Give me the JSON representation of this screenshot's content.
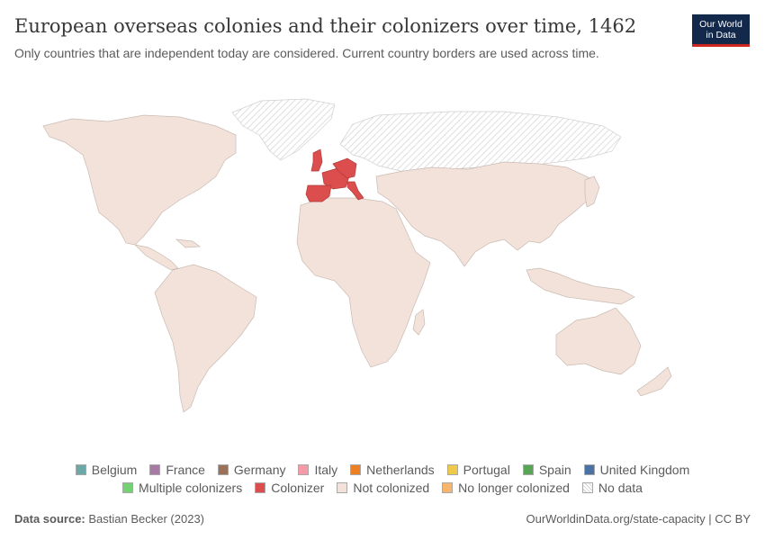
{
  "header": {
    "title": "European overseas colonies and their colonizers over time, 1462",
    "subtitle": "Only countries that are independent today are considered. Current country borders are used across time."
  },
  "logo": {
    "line1": "Our World",
    "line2": "in Data"
  },
  "map": {
    "year": "1462",
    "colonizer_color": "#dc4d4d",
    "not_colonized_color": "#f2e2d9",
    "no_data_pattern": "hatched-gray",
    "colonizers_shown": [
      "United Kingdom",
      "France",
      "Spain",
      "Portugal",
      "Italy",
      "Belgium",
      "Netherlands",
      "Germany"
    ]
  },
  "legend": {
    "row1": [
      {
        "label": "Belgium",
        "color": "#6ca8a5"
      },
      {
        "label": "France",
        "color": "#a77aa5"
      },
      {
        "label": "Germany",
        "color": "#9a7259"
      },
      {
        "label": "Italy",
        "color": "#f59aa6"
      },
      {
        "label": "Netherlands",
        "color": "#ee7f23"
      },
      {
        "label": "Portugal",
        "color": "#efc94a"
      },
      {
        "label": "Spain",
        "color": "#58a556"
      },
      {
        "label": "United Kingdom",
        "color": "#4c71a3"
      }
    ],
    "row2": [
      {
        "label": "Multiple colonizers",
        "color": "#74d273"
      },
      {
        "label": "Colonizer",
        "color": "#dc4d4d"
      },
      {
        "label": "Not colonized",
        "color": "#f2e2d9"
      },
      {
        "label": "No longer colonized",
        "color": "#f7b56d"
      },
      {
        "label": "No data",
        "color": "hatched"
      }
    ]
  },
  "footer": {
    "source_label": "Data source:",
    "source_text": "Bastian Becker (2023)",
    "url": "OurWorldinData.org/state-capacity | CC BY"
  }
}
